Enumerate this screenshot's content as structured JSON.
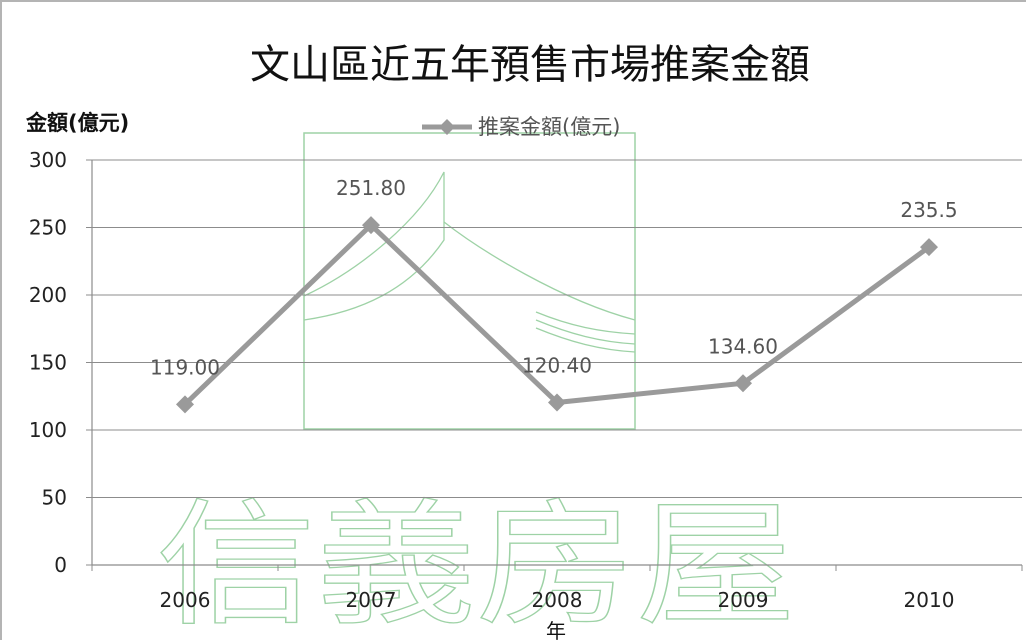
{
  "chart_data": {
    "type": "line",
    "title": "文山區近五年預售市場推案金額",
    "ylabel": "金額(億元)",
    "xlabel": "年",
    "categories": [
      "2006",
      "2007",
      "2008",
      "2009",
      "2010"
    ],
    "series": [
      {
        "name": "推案金額(億元)",
        "values": [
          119.0,
          251.8,
          120.4,
          134.6,
          235.5
        ],
        "data_labels": [
          "119.00",
          "251.80",
          "120.40",
          "134.60",
          "235.5"
        ],
        "color": "#9a9a9a",
        "marker": "diamond"
      }
    ],
    "yticks": [
      "0",
      "50",
      "100",
      "150",
      "200",
      "250",
      "300"
    ],
    "ylim": [
      0,
      300
    ],
    "grid": true,
    "legend_position": "top"
  },
  "watermark": {
    "text": "信義房屋",
    "color": "#9ed2a6"
  }
}
